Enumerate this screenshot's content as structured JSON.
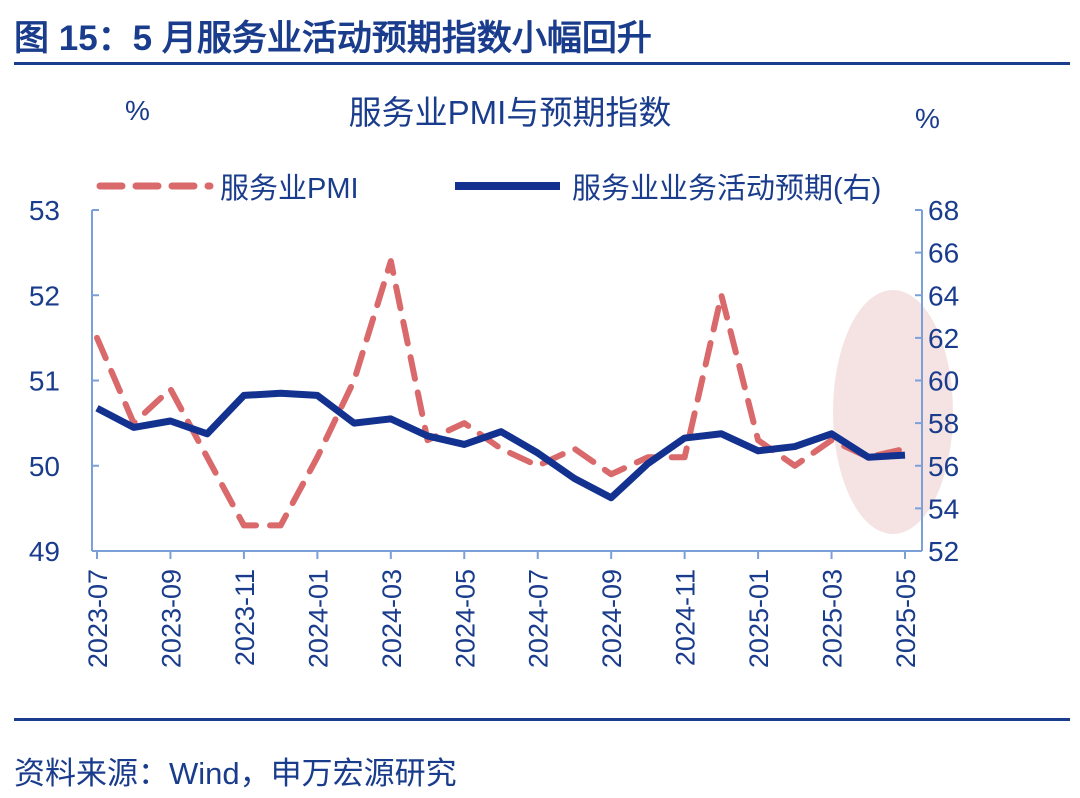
{
  "figure_title": "图 15：5 月服务业活动预期指数小幅回升",
  "source": "资料来源：Wind，申万宏源研究",
  "colors": {
    "pmi": "#d9696a",
    "expectation": "#13318f",
    "axis": "#7ba0d8",
    "highlight": "#f5e3e3",
    "text": "#1a3c8c"
  },
  "chart_data": {
    "type": "line",
    "title": "服务业PMI与预期指数",
    "ylabel_left": "%",
    "ylabel_right": "%",
    "ylim_left": [
      49,
      53
    ],
    "ylim_right": [
      52,
      68
    ],
    "yticks_left": [
      49,
      50,
      51,
      52,
      53
    ],
    "yticks_right": [
      52,
      54,
      56,
      58,
      60,
      62,
      64,
      66,
      68
    ],
    "x": [
      "2023-07",
      "2023-08",
      "2023-09",
      "2023-10",
      "2023-11",
      "2023-12",
      "2024-01",
      "2024-02",
      "2024-03",
      "2024-04",
      "2024-05",
      "2024-06",
      "2024-07",
      "2024-08",
      "2024-09",
      "2024-10",
      "2024-11",
      "2024-12",
      "2025-01",
      "2025-02",
      "2025-03",
      "2025-04",
      "2025-05"
    ],
    "xtick_labels": [
      "2023-07",
      "2023-09",
      "2023-11",
      "2024-01",
      "2024-03",
      "2024-05",
      "2024-07",
      "2024-09",
      "2024-11",
      "2025-01",
      "2025-03",
      "2025-05"
    ],
    "legend_position": "top",
    "grid": false,
    "highlight": "2025-04 to 2025-05 ellipse",
    "series": [
      {
        "name": "服务业PMI",
        "axis": "left",
        "style": "dashed",
        "values": [
          51.5,
          50.5,
          50.9,
          50.1,
          49.3,
          49.3,
          50.1,
          51.0,
          52.4,
          50.3,
          50.5,
          50.2,
          50.0,
          50.2,
          49.9,
          50.1,
          50.1,
          52.0,
          50.3,
          50.0,
          50.3,
          50.1,
          50.2
        ]
      },
      {
        "name": "服务业业务活动预期(右)",
        "axis": "right",
        "style": "solid",
        "values": [
          58.7,
          57.8,
          58.1,
          57.5,
          59.3,
          59.4,
          59.3,
          58.0,
          58.2,
          57.4,
          57.0,
          57.6,
          56.6,
          55.4,
          54.5,
          56.1,
          57.3,
          57.5,
          56.7,
          56.9,
          57.5,
          56.4,
          56.5
        ]
      }
    ]
  }
}
